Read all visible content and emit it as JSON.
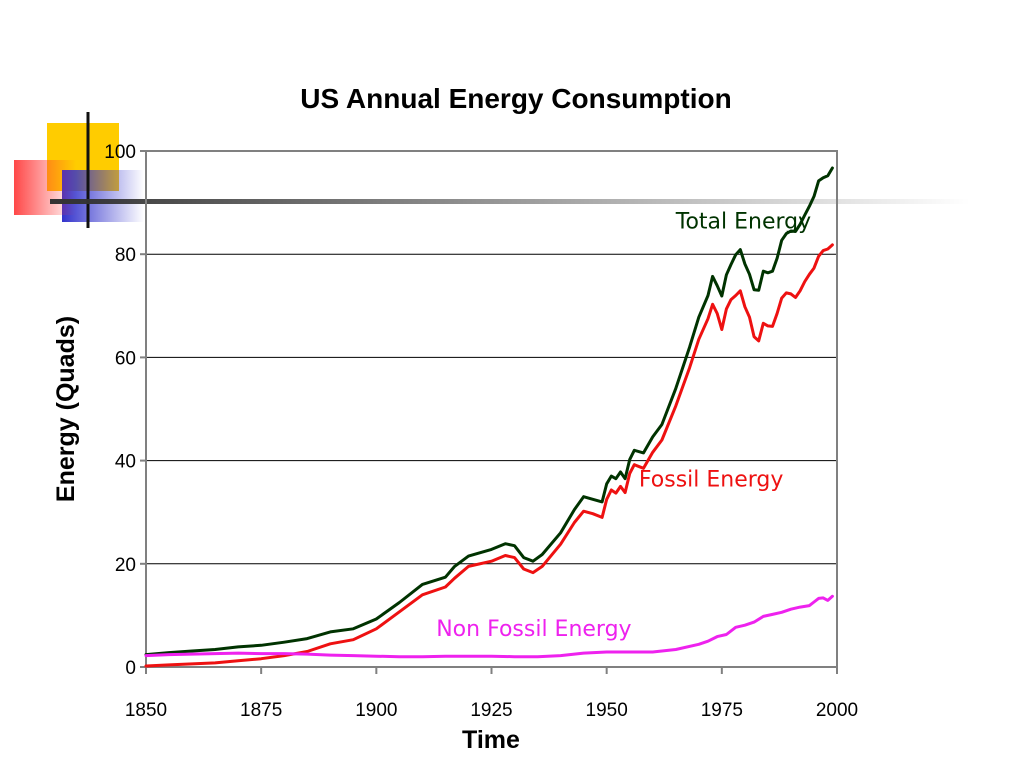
{
  "colors": {
    "deco_yellow": "#FFCC00",
    "deco_red": "#FF3333",
    "deco_blue": "#3333CC",
    "deco_line": "#333333",
    "frame": "#808080"
  },
  "chart_data": {
    "type": "line",
    "title": "US Annual Energy Consumption",
    "xlabel": "Time",
    "ylabel": "Energy (Quads)",
    "xlim": [
      1850,
      2000
    ],
    "ylim": [
      0,
      100
    ],
    "x_ticks": [
      1850,
      1875,
      1900,
      1925,
      1950,
      1975,
      2000
    ],
    "y_ticks": [
      0,
      20,
      40,
      60,
      80,
      100
    ],
    "grid": true,
    "legend": "none (series labelled directly on chart)",
    "series": [
      {
        "name": "Total Energy",
        "color": "#003300",
        "points": [
          [
            1850,
            2.4
          ],
          [
            1855,
            2.8
          ],
          [
            1860,
            3.1
          ],
          [
            1865,
            3.4
          ],
          [
            1870,
            3.9
          ],
          [
            1875,
            4.2
          ],
          [
            1880,
            4.8
          ],
          [
            1885,
            5.5
          ],
          [
            1890,
            6.8
          ],
          [
            1895,
            7.4
          ],
          [
            1900,
            9.3
          ],
          [
            1905,
            12.5
          ],
          [
            1910,
            16.0
          ],
          [
            1915,
            17.4
          ],
          [
            1917,
            19.5
          ],
          [
            1920,
            21.5
          ],
          [
            1925,
            22.8
          ],
          [
            1928,
            23.9
          ],
          [
            1930,
            23.5
          ],
          [
            1932,
            21.2
          ],
          [
            1934,
            20.5
          ],
          [
            1936,
            21.8
          ],
          [
            1940,
            26.0
          ],
          [
            1943,
            30.5
          ],
          [
            1945,
            33.0
          ],
          [
            1947,
            32.5
          ],
          [
            1949,
            32.0
          ],
          [
            1950,
            35.5
          ],
          [
            1951,
            37.0
          ],
          [
            1952,
            36.5
          ],
          [
            1953,
            37.8
          ],
          [
            1954,
            36.5
          ],
          [
            1955,
            40.2
          ],
          [
            1956,
            42.0
          ],
          [
            1958,
            41.5
          ],
          [
            1960,
            44.6
          ],
          [
            1962,
            47.0
          ],
          [
            1965,
            54.0
          ],
          [
            1968,
            62.0
          ],
          [
            1970,
            67.8
          ],
          [
            1972,
            72.0
          ],
          [
            1973,
            75.7
          ],
          [
            1974,
            73.9
          ],
          [
            1975,
            71.9
          ],
          [
            1976,
            76.0
          ],
          [
            1977,
            78.0
          ],
          [
            1978,
            79.9
          ],
          [
            1979,
            80.9
          ],
          [
            1980,
            78.1
          ],
          [
            1981,
            76.1
          ],
          [
            1982,
            73.1
          ],
          [
            1983,
            73.0
          ],
          [
            1984,
            76.7
          ],
          [
            1985,
            76.4
          ],
          [
            1986,
            76.7
          ],
          [
            1987,
            79.2
          ],
          [
            1988,
            82.7
          ],
          [
            1989,
            84.0
          ],
          [
            1990,
            84.5
          ],
          [
            1991,
            84.4
          ],
          [
            1992,
            85.8
          ],
          [
            1993,
            87.6
          ],
          [
            1994,
            89.3
          ],
          [
            1995,
            91.2
          ],
          [
            1996,
            94.2
          ],
          [
            1997,
            94.8
          ],
          [
            1998,
            95.2
          ],
          [
            1999,
            96.7
          ]
        ]
      },
      {
        "name": "Fossil Energy",
        "color": "#EE1111",
        "points": [
          [
            1850,
            0.2
          ],
          [
            1855,
            0.4
          ],
          [
            1860,
            0.6
          ],
          [
            1865,
            0.8
          ],
          [
            1870,
            1.2
          ],
          [
            1875,
            1.6
          ],
          [
            1880,
            2.2
          ],
          [
            1885,
            3.0
          ],
          [
            1890,
            4.5
          ],
          [
            1895,
            5.3
          ],
          [
            1900,
            7.4
          ],
          [
            1905,
            10.7
          ],
          [
            1910,
            14.0
          ],
          [
            1915,
            15.5
          ],
          [
            1917,
            17.2
          ],
          [
            1920,
            19.5
          ],
          [
            1925,
            20.5
          ],
          [
            1928,
            21.6
          ],
          [
            1930,
            21.2
          ],
          [
            1932,
            19.0
          ],
          [
            1934,
            18.3
          ],
          [
            1936,
            19.5
          ],
          [
            1940,
            23.8
          ],
          [
            1943,
            28.0
          ],
          [
            1945,
            30.2
          ],
          [
            1947,
            29.7
          ],
          [
            1949,
            29.0
          ],
          [
            1950,
            32.5
          ],
          [
            1951,
            34.3
          ],
          [
            1952,
            33.7
          ],
          [
            1953,
            35.0
          ],
          [
            1954,
            33.8
          ],
          [
            1955,
            37.5
          ],
          [
            1956,
            39.2
          ],
          [
            1958,
            38.5
          ],
          [
            1960,
            41.6
          ],
          [
            1962,
            44.0
          ],
          [
            1965,
            50.6
          ],
          [
            1968,
            58.0
          ],
          [
            1970,
            63.5
          ],
          [
            1972,
            67.5
          ],
          [
            1973,
            70.3
          ],
          [
            1974,
            68.5
          ],
          [
            1975,
            65.4
          ],
          [
            1976,
            69.4
          ],
          [
            1977,
            71.2
          ],
          [
            1978,
            72.0
          ],
          [
            1979,
            72.9
          ],
          [
            1980,
            69.8
          ],
          [
            1981,
            67.8
          ],
          [
            1982,
            64.0
          ],
          [
            1983,
            63.2
          ],
          [
            1984,
            66.6
          ],
          [
            1985,
            66.1
          ],
          [
            1986,
            66.0
          ],
          [
            1987,
            68.5
          ],
          [
            1988,
            71.5
          ],
          [
            1989,
            72.5
          ],
          [
            1990,
            72.3
          ],
          [
            1991,
            71.6
          ],
          [
            1992,
            72.9
          ],
          [
            1993,
            74.7
          ],
          [
            1994,
            76.1
          ],
          [
            1995,
            77.3
          ],
          [
            1996,
            79.6
          ],
          [
            1997,
            80.7
          ],
          [
            1998,
            81.0
          ],
          [
            1999,
            81.8
          ]
        ]
      },
      {
        "name": "Non Fossil Energy",
        "color": "#EE22EE",
        "points": [
          [
            1850,
            2.2
          ],
          [
            1855,
            2.4
          ],
          [
            1860,
            2.5
          ],
          [
            1865,
            2.6
          ],
          [
            1870,
            2.7
          ],
          [
            1875,
            2.6
          ],
          [
            1880,
            2.6
          ],
          [
            1885,
            2.5
          ],
          [
            1890,
            2.3
          ],
          [
            1895,
            2.2
          ],
          [
            1900,
            2.1
          ],
          [
            1905,
            2.0
          ],
          [
            1910,
            2.0
          ],
          [
            1915,
            2.1
          ],
          [
            1920,
            2.1
          ],
          [
            1925,
            2.1
          ],
          [
            1930,
            2.0
          ],
          [
            1935,
            2.0
          ],
          [
            1940,
            2.2
          ],
          [
            1945,
            2.7
          ],
          [
            1950,
            2.9
          ],
          [
            1955,
            2.9
          ],
          [
            1960,
            2.9
          ],
          [
            1965,
            3.4
          ],
          [
            1970,
            4.4
          ],
          [
            1972,
            5.0
          ],
          [
            1974,
            5.9
          ],
          [
            1976,
            6.3
          ],
          [
            1978,
            7.7
          ],
          [
            1980,
            8.1
          ],
          [
            1982,
            8.7
          ],
          [
            1984,
            9.8
          ],
          [
            1986,
            10.2
          ],
          [
            1988,
            10.6
          ],
          [
            1990,
            11.2
          ],
          [
            1992,
            11.6
          ],
          [
            1994,
            11.9
          ],
          [
            1995,
            12.6
          ],
          [
            1996,
            13.3
          ],
          [
            1997,
            13.4
          ],
          [
            1998,
            12.9
          ],
          [
            1999,
            13.7
          ]
        ]
      }
    ],
    "series_labels": [
      {
        "text": "Total Energy",
        "at": [
          1965,
          85
        ],
        "color": "#003300"
      },
      {
        "text": "Fossil Energy",
        "at": [
          1957,
          35
        ],
        "color": "#EE1111"
      },
      {
        "text": "Non Fossil Energy",
        "at": [
          1913,
          6
        ],
        "color": "#EE22EE"
      }
    ]
  }
}
